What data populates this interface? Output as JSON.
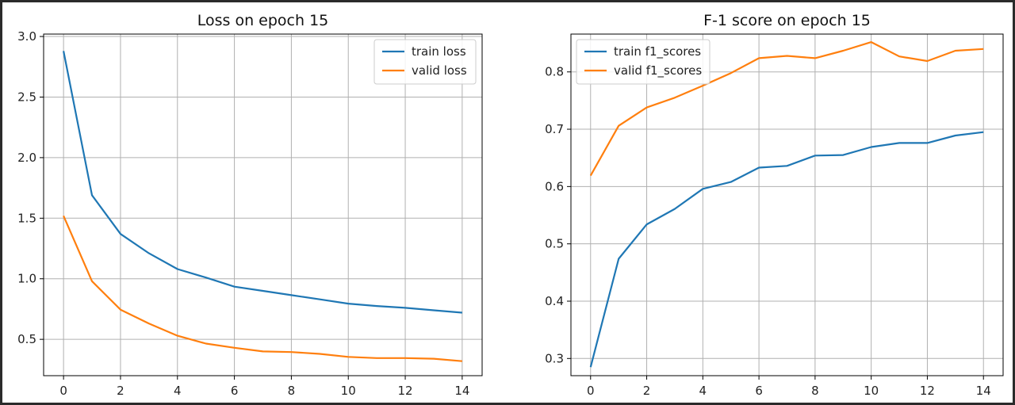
{
  "chart_data": [
    {
      "type": "line",
      "title": "Loss on epoch 15",
      "xlabel": "",
      "ylabel": "",
      "x": [
        0,
        1,
        2,
        3,
        4,
        5,
        6,
        7,
        8,
        9,
        10,
        11,
        12,
        13,
        14
      ],
      "xlim": [
        -0.7,
        14.7
      ],
      "ylim": [
        0.2,
        3.02
      ],
      "xticks": [
        0,
        2,
        4,
        6,
        8,
        10,
        12,
        14
      ],
      "yticks": [
        0.5,
        1.0,
        1.5,
        2.0,
        2.5,
        3.0
      ],
      "ytick_labels": [
        "0.5",
        "1.0",
        "1.5",
        "2.0",
        "2.5",
        "3.0"
      ],
      "grid": true,
      "legend_position": "top-right",
      "series": [
        {
          "name": "train loss",
          "color": "#1f77b4",
          "values": [
            2.88,
            1.69,
            1.37,
            1.21,
            1.08,
            1.01,
            0.935,
            0.9,
            0.865,
            0.83,
            0.795,
            0.775,
            0.76,
            0.74,
            0.72
          ]
        },
        {
          "name": "valid loss",
          "color": "#ff7f0e",
          "values": [
            1.52,
            0.98,
            0.745,
            0.63,
            0.53,
            0.465,
            0.43,
            0.4,
            0.395,
            0.38,
            0.355,
            0.345,
            0.345,
            0.34,
            0.32
          ]
        }
      ]
    },
    {
      "type": "line",
      "title": "F-1 score on epoch 15",
      "xlabel": "",
      "ylabel": "",
      "x": [
        0,
        1,
        2,
        3,
        4,
        5,
        6,
        7,
        8,
        9,
        10,
        11,
        12,
        13,
        14
      ],
      "xlim": [
        -0.7,
        14.7
      ],
      "ylim": [
        0.27,
        0.866
      ],
      "xticks": [
        0,
        2,
        4,
        6,
        8,
        10,
        12,
        14
      ],
      "yticks": [
        0.3,
        0.4,
        0.5,
        0.6,
        0.7,
        0.8
      ],
      "ytick_labels": [
        "0.3",
        "0.4",
        "0.5",
        "0.6",
        "0.7",
        "0.8"
      ],
      "grid": true,
      "legend_position": "top-left",
      "series": [
        {
          "name": "train f1_scores",
          "color": "#1f77b4",
          "values": [
            0.285,
            0.474,
            0.534,
            0.561,
            0.596,
            0.608,
            0.633,
            0.636,
            0.654,
            0.655,
            0.669,
            0.676,
            0.676,
            0.689,
            0.695
          ]
        },
        {
          "name": "valid f1_scores",
          "color": "#ff7f0e",
          "values": [
            0.619,
            0.706,
            0.738,
            0.755,
            0.776,
            0.798,
            0.824,
            0.828,
            0.824,
            0.837,
            0.852,
            0.827,
            0.819,
            0.837,
            0.84
          ]
        }
      ]
    }
  ]
}
